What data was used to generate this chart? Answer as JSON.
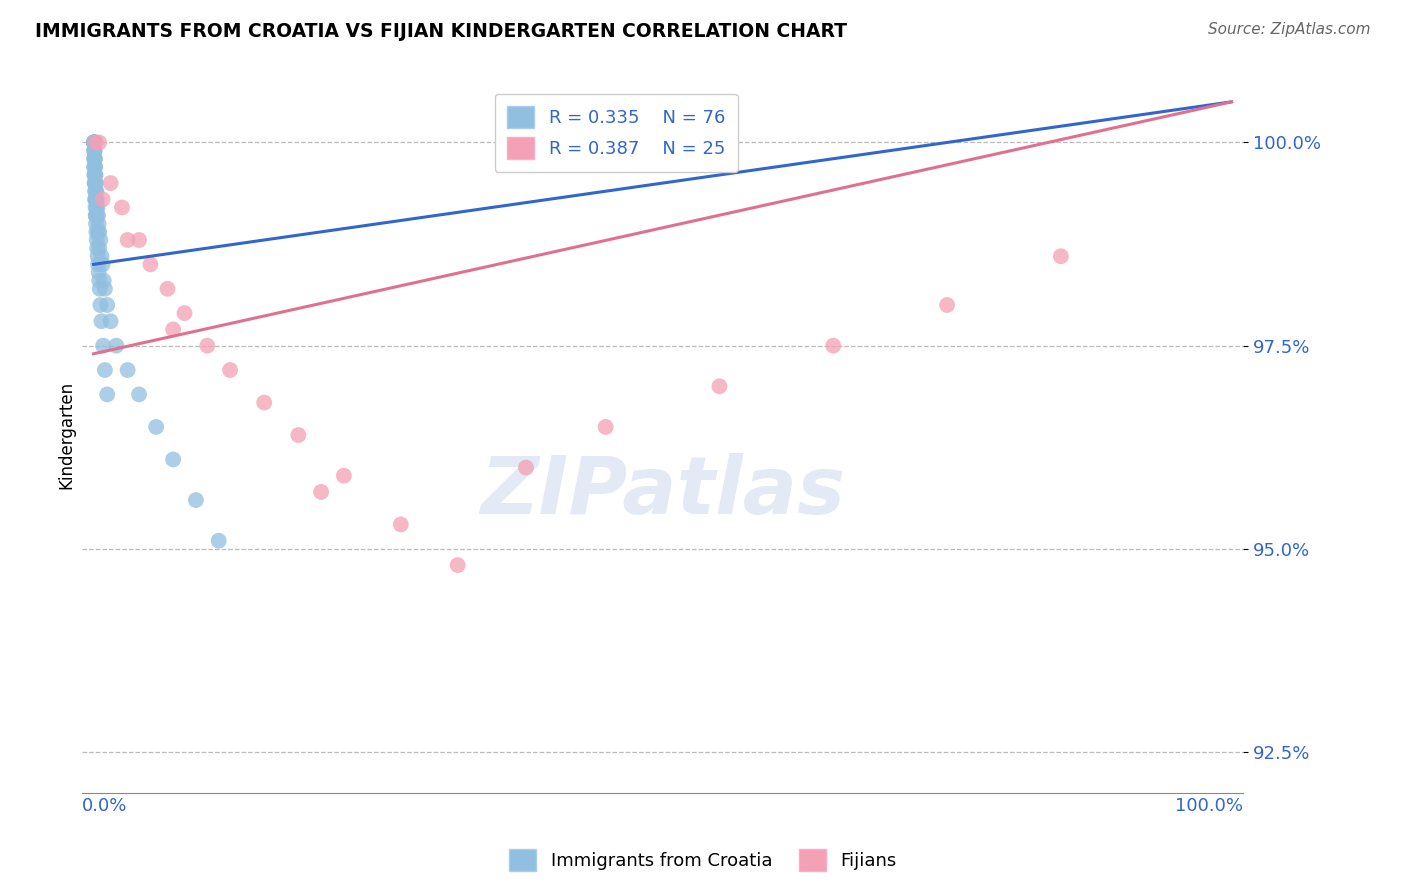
{
  "title": "IMMIGRANTS FROM CROATIA VS FIJIAN KINDERGARTEN CORRELATION CHART",
  "source": "Source: ZipAtlas.com",
  "ylabel": "Kindergarten",
  "watermark": "ZIPatlas",
  "blue_label": "Immigrants from Croatia",
  "pink_label": "Fijians",
  "blue_R": 0.335,
  "blue_N": 76,
  "pink_R": 0.387,
  "pink_N": 25,
  "blue_color": "#90bfe0",
  "pink_color": "#f4a0b5",
  "blue_line_color": "#3366cc",
  "pink_line_color": "#e07090",
  "ylim_min": 92.0,
  "ylim_max": 100.8,
  "xlim_min": -1,
  "xlim_max": 101,
  "yticks": [
    92.5,
    95.0,
    97.5,
    100.0
  ],
  "blue_x": [
    0.05,
    0.05,
    0.05,
    0.05,
    0.05,
    0.05,
    0.05,
    0.05,
    0.08,
    0.08,
    0.08,
    0.08,
    0.1,
    0.1,
    0.1,
    0.1,
    0.1,
    0.12,
    0.12,
    0.15,
    0.15,
    0.15,
    0.18,
    0.18,
    0.2,
    0.2,
    0.2,
    0.25,
    0.25,
    0.3,
    0.3,
    0.35,
    0.4,
    0.4,
    0.45,
    0.5,
    0.5,
    0.6,
    0.7,
    0.8,
    0.9,
    1.0,
    1.2,
    1.5,
    2.0,
    3.0,
    4.0,
    5.5,
    7.0,
    9.0,
    11.0,
    0.05,
    0.06,
    0.07,
    0.08,
    0.09,
    0.1,
    0.12,
    0.14,
    0.16,
    0.18,
    0.2,
    0.22,
    0.25,
    0.28,
    0.32,
    0.36,
    0.4,
    0.45,
    0.5,
    0.55,
    0.6,
    0.7,
    0.85,
    1.0,
    1.2
  ],
  "blue_y": [
    100.0,
    100.0,
    100.0,
    100.0,
    100.0,
    100.0,
    100.0,
    100.0,
    100.0,
    100.0,
    99.9,
    99.8,
    99.9,
    99.8,
    99.7,
    99.6,
    99.5,
    99.8,
    99.6,
    99.7,
    99.5,
    99.3,
    99.6,
    99.4,
    99.5,
    99.3,
    99.1,
    99.4,
    99.2,
    99.3,
    99.1,
    99.2,
    99.1,
    98.9,
    99.0,
    98.9,
    98.7,
    98.8,
    98.6,
    98.5,
    98.3,
    98.2,
    98.0,
    97.8,
    97.5,
    97.2,
    96.9,
    96.5,
    96.1,
    95.6,
    95.1,
    99.9,
    99.8,
    99.7,
    99.7,
    99.6,
    99.6,
    99.5,
    99.4,
    99.3,
    99.2,
    99.1,
    99.0,
    98.9,
    98.8,
    98.7,
    98.6,
    98.5,
    98.4,
    98.3,
    98.2,
    98.0,
    97.8,
    97.5,
    97.2,
    96.9
  ],
  "pink_x": [
    0.2,
    0.5,
    1.5,
    2.5,
    4.0,
    5.0,
    6.5,
    8.0,
    10.0,
    12.0,
    15.0,
    18.0,
    22.0,
    27.0,
    32.0,
    38.0,
    45.0,
    55.0,
    65.0,
    75.0,
    85.0,
    0.8,
    3.0,
    7.0,
    20.0
  ],
  "pink_y": [
    100.0,
    100.0,
    99.5,
    99.2,
    98.8,
    98.5,
    98.2,
    97.9,
    97.5,
    97.2,
    96.8,
    96.4,
    95.9,
    95.3,
    94.8,
    96.0,
    96.5,
    97.0,
    97.5,
    98.0,
    98.6,
    99.3,
    98.8,
    97.7,
    95.7
  ],
  "blue_trendline_x": [
    0,
    100
  ],
  "blue_trendline_y": [
    98.5,
    100.5
  ],
  "pink_trendline_x": [
    0,
    100
  ],
  "pink_trendline_y": [
    97.4,
    100.5
  ]
}
